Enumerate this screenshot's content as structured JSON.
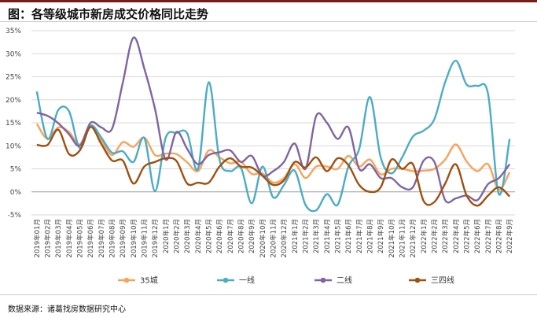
{
  "title": "图：各等级城市新房成交价格同比走势",
  "source": "数据来源：诸葛找房数据研究中心",
  "chart_data": {
    "type": "line",
    "ylim": [
      -5,
      35
    ],
    "yticks": [
      -5,
      0,
      5,
      10,
      15,
      20,
      25,
      30,
      35
    ],
    "ytick_labels": [
      "-5%",
      "0%",
      "5%",
      "10%",
      "15%",
      "20%",
      "25%",
      "30%",
      "35%"
    ],
    "grid": true,
    "legend_position": "bottom",
    "categories": [
      "2019年01月",
      "2019年02月",
      "2019年03月",
      "2019年04月",
      "2019年05月",
      "2019年06月",
      "2019年07月",
      "2019年08月",
      "2019年09月",
      "2019年10月",
      "2019年11月",
      "2019年12月",
      "2020年1月",
      "2020年2月",
      "2020年3月",
      "2020年4月",
      "2020年5月",
      "2020年6月",
      "2020年7月",
      "2020年8月",
      "2020年9月",
      "2020年10月",
      "2020年11月",
      "2020年12月",
      "2021年1月",
      "2021年2月",
      "2021年3月",
      "2021年4月",
      "2021年5月",
      "2021年6月",
      "2021年7月",
      "2021年8月",
      "2021年9月",
      "2021年10月",
      "2021年11月",
      "2021年12月",
      "2022年1月",
      "2022年2月",
      "2022年3月",
      "2022年4月",
      "2022年5月",
      "2022年6月",
      "2022年7月",
      "2022年8月",
      "2022年9月"
    ],
    "series": [
      {
        "name": "35城",
        "color": "#f7a35c",
        "values": [
          14.8,
          11.5,
          14.0,
          13.0,
          10.3,
          14.5,
          11.2,
          8.0,
          10.8,
          9.8,
          11.8,
          8.0,
          8.3,
          8.2,
          6.4,
          4.5,
          9.0,
          7.5,
          6.2,
          6.5,
          3.9,
          4.0,
          2.0,
          3.0,
          6.0,
          3.0,
          5.5,
          5.5,
          5.0,
          7.8,
          5.5,
          7.0,
          3.8,
          5.0,
          5.0,
          4.5,
          4.6,
          5.0,
          7.0,
          10.3,
          6.6,
          4.5,
          6.0,
          0.5,
          4.3
        ]
      },
      {
        "name": "一线",
        "color": "#4bacc6",
        "values": [
          21.8,
          11.5,
          17.8,
          17.5,
          9.5,
          14.4,
          11.8,
          8.5,
          8.8,
          6.5,
          11.7,
          0.2,
          11.8,
          12.8,
          12.7,
          5.0,
          23.8,
          7.0,
          4.5,
          5.2,
          -2.5,
          5.5,
          -1.2,
          1.5,
          4.6,
          -2.8,
          -4.0,
          -0.5,
          -2.8,
          5.5,
          9.3,
          20.6,
          7.5,
          4.0,
          7.5,
          12.0,
          13.3,
          15.8,
          23.8,
          28.5,
          23.3,
          23.0,
          21.2,
          -0.5,
          11.5
        ]
      },
      {
        "name": "二线",
        "color": "#8064a2",
        "values": [
          17.2,
          16.5,
          14.9,
          12.5,
          10.0,
          15.0,
          14.0,
          13.7,
          23.7,
          33.5,
          26.8,
          18.0,
          7.0,
          13.0,
          9.3,
          6.0,
          8.0,
          8.6,
          9.0,
          6.5,
          7.8,
          3.5,
          4.5,
          6.5,
          10.5,
          5.0,
          16.5,
          15.0,
          11.5,
          14.0,
          5.0,
          6.0,
          3.0,
          3.0,
          1.0,
          1.0,
          6.8,
          6.5,
          -1.8,
          -1.4,
          -0.8,
          -1.8,
          1.7,
          3.0,
          6.0
        ]
      },
      {
        "name": "三四线",
        "color": "#a0500f",
        "values": [
          10.2,
          10.2,
          13.5,
          8.2,
          9.0,
          14.1,
          10.4,
          6.8,
          6.8,
          1.8,
          5.5,
          6.5,
          7.3,
          6.7,
          1.8,
          2.0,
          2.0,
          5.5,
          7.3,
          5.5,
          5.3,
          3.5,
          1.5,
          2.5,
          6.5,
          5.3,
          7.5,
          4.5,
          7.3,
          5.8,
          1.5,
          0.0,
          1.0,
          7.0,
          5.0,
          6.0,
          -2.0,
          -2.2,
          1.8,
          6.0,
          -0.8,
          -3.0,
          -0.8,
          1.0,
          -1.0
        ]
      }
    ]
  }
}
